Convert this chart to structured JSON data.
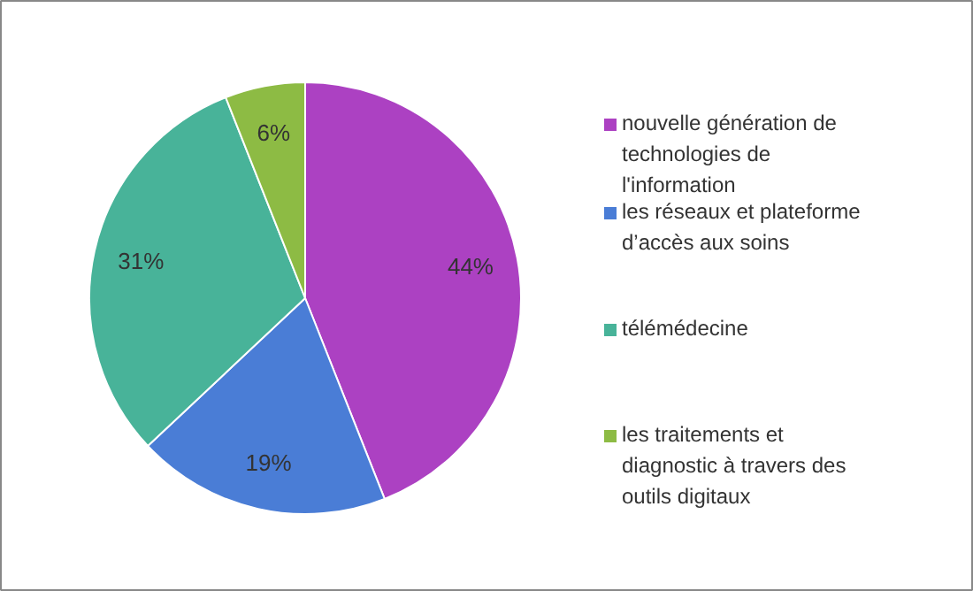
{
  "chart_data": {
    "type": "pie",
    "categories": [
      "nouvelle génération de technologies de l'information",
      "les réseaux et plateforme d’accès aux soins",
      "télémédecine",
      "les traitements et diagnostic à travers des outils digitaux"
    ],
    "values": [
      44,
      19,
      31,
      6
    ],
    "value_labels": [
      "44%",
      "19%",
      "31%",
      "6%"
    ],
    "colors": [
      "#ac41c2",
      "#4a7dd6",
      "#48b399",
      "#8dbb44"
    ],
    "legend": "right"
  }
}
